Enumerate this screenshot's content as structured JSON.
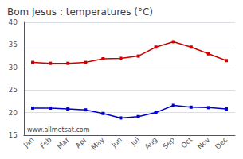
{
  "chart_data": {
    "type": "line",
    "title": "Bom Jesus : temperatures (°C)",
    "categories": [
      "Jan",
      "Feb",
      "Mar",
      "Apr",
      "May",
      "Jun",
      "Jul",
      "Aug",
      "Sep",
      "Oct",
      "Nov",
      "Dec"
    ],
    "series": [
      {
        "color": "#cc0000",
        "marker": "square",
        "values": [
          31.1,
          30.9,
          30.9,
          31.1,
          31.9,
          32.0,
          32.5,
          34.5,
          35.7,
          34.5,
          33.0,
          31.5
        ]
      },
      {
        "color": "#0000cc",
        "marker": "square",
        "values": [
          21.0,
          21.0,
          20.8,
          20.6,
          19.8,
          18.8,
          19.1,
          20.0,
          21.6,
          21.2,
          21.1,
          20.8
        ]
      }
    ],
    "ylim": [
      15,
      40
    ],
    "yticks": [
      15,
      20,
      25,
      30,
      35,
      40
    ],
    "grid": true,
    "annotations": [
      "www.allmetsat.com"
    ]
  }
}
